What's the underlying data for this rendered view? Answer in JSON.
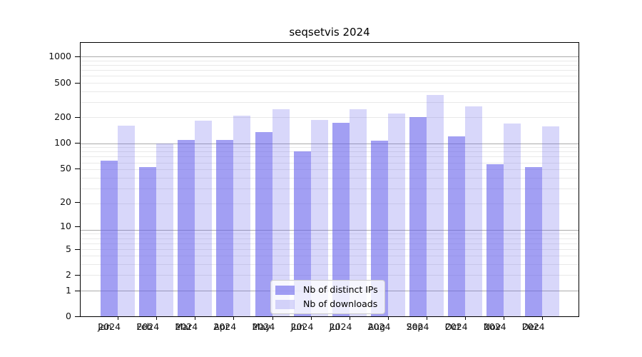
{
  "chart_data": {
    "type": "bar",
    "title": "seqsetvis 2024",
    "categories": [
      "Jan",
      "Feb",
      "Mar",
      "Apr",
      "May",
      "Jun",
      "Jul",
      "Aug",
      "Sep",
      "Oct",
      "Nov",
      "Dec"
    ],
    "category_year": "2024",
    "series": [
      {
        "name": "Nb of distinct IPs",
        "color": "#645feb",
        "alpha": 0.6,
        "blended_hex": "#a3a0f1",
        "values": [
          62,
          52,
          108,
          108,
          134,
          79,
          170,
          107,
          200,
          120,
          56,
          52
        ]
      },
      {
        "name": "Nb of downloads",
        "color": "#645feb",
        "alpha": 0.25,
        "blended_hex": "#d8d7f8",
        "values": [
          158,
          98,
          180,
          208,
          245,
          186,
          245,
          220,
          360,
          265,
          168,
          156
        ]
      }
    ],
    "y_axis": {
      "scale": "log1p",
      "tick_values": [
        1000,
        500,
        200,
        100,
        50,
        20,
        10,
        5,
        2,
        1,
        0
      ],
      "range": [
        0,
        1400
      ]
    },
    "x_axis": {
      "tick_label_lines": 2
    },
    "legend": {
      "position": "lower-center",
      "entries": [
        "Nb of distinct IPs",
        "Nb of downloads"
      ]
    },
    "grid": {
      "visible": true,
      "major_color": "#ababab",
      "minor_color": "#e9e9e9"
    }
  }
}
